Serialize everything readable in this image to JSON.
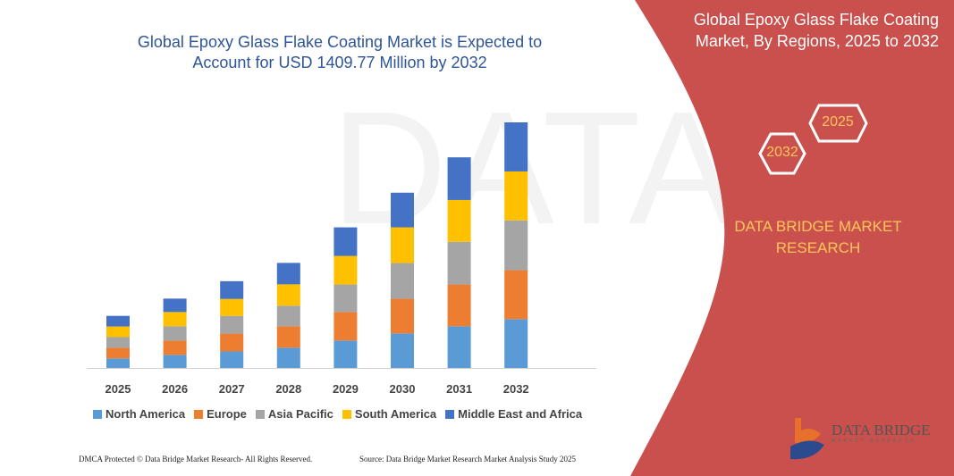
{
  "title": "Global Epoxy Glass Flake Coating Market is Expected to Account for USD 1409.77 Million by 2032",
  "side_panel": {
    "title": "Global Epoxy Glass Flake Coating Market, By Regions, 2025 to 2032",
    "hex_start": "2025",
    "hex_end": "2032",
    "brand": "DATA BRIDGE MARKET RESEARCH",
    "logo_text": "DATA BRIDGE",
    "logo_sub": "MARKET RESEARCH",
    "color": "#C9504C"
  },
  "footer": {
    "left": "DMCA Protected © Data Bridge Market Research-  All Rights Reserved.",
    "right": "Source: Data Bridge Market Research  Market Analysis Study 2025"
  },
  "chart_data": {
    "type": "bar",
    "stacked": true,
    "title": "Global Epoxy Glass Flake Coating Market is Expected to Account for USD 1409.77 Million by 2032",
    "xlabel": "",
    "ylabel": "",
    "grid": false,
    "legend_position": "bottom",
    "categories": [
      "2025",
      "2026",
      "2027",
      "2028",
      "2029",
      "2030",
      "2031",
      "2032"
    ],
    "ylim": [
      0,
      1409.77
    ],
    "series": [
      {
        "name": "North America",
        "color": "#5B9BD5",
        "values": [
          55,
          75,
          95,
          116,
          157,
          198,
          239,
          280
        ]
      },
      {
        "name": "Europe",
        "color": "#ED7D31",
        "values": [
          61,
          82,
          102,
          123,
          164,
          199,
          240,
          281
        ]
      },
      {
        "name": "Asia Pacific",
        "color": "#A5A5A5",
        "values": [
          61,
          82,
          102,
          118,
          158,
          205,
          245,
          286
        ]
      },
      {
        "name": "South America",
        "color": "#FFC000",
        "values": [
          61,
          82,
          97,
          123,
          164,
          205,
          240,
          281
        ]
      },
      {
        "name": "Middle East and Africa",
        "color": "#4472C4",
        "values": [
          61,
          77,
          102,
          123,
          164,
          199,
          245,
          281.77
        ]
      }
    ]
  }
}
